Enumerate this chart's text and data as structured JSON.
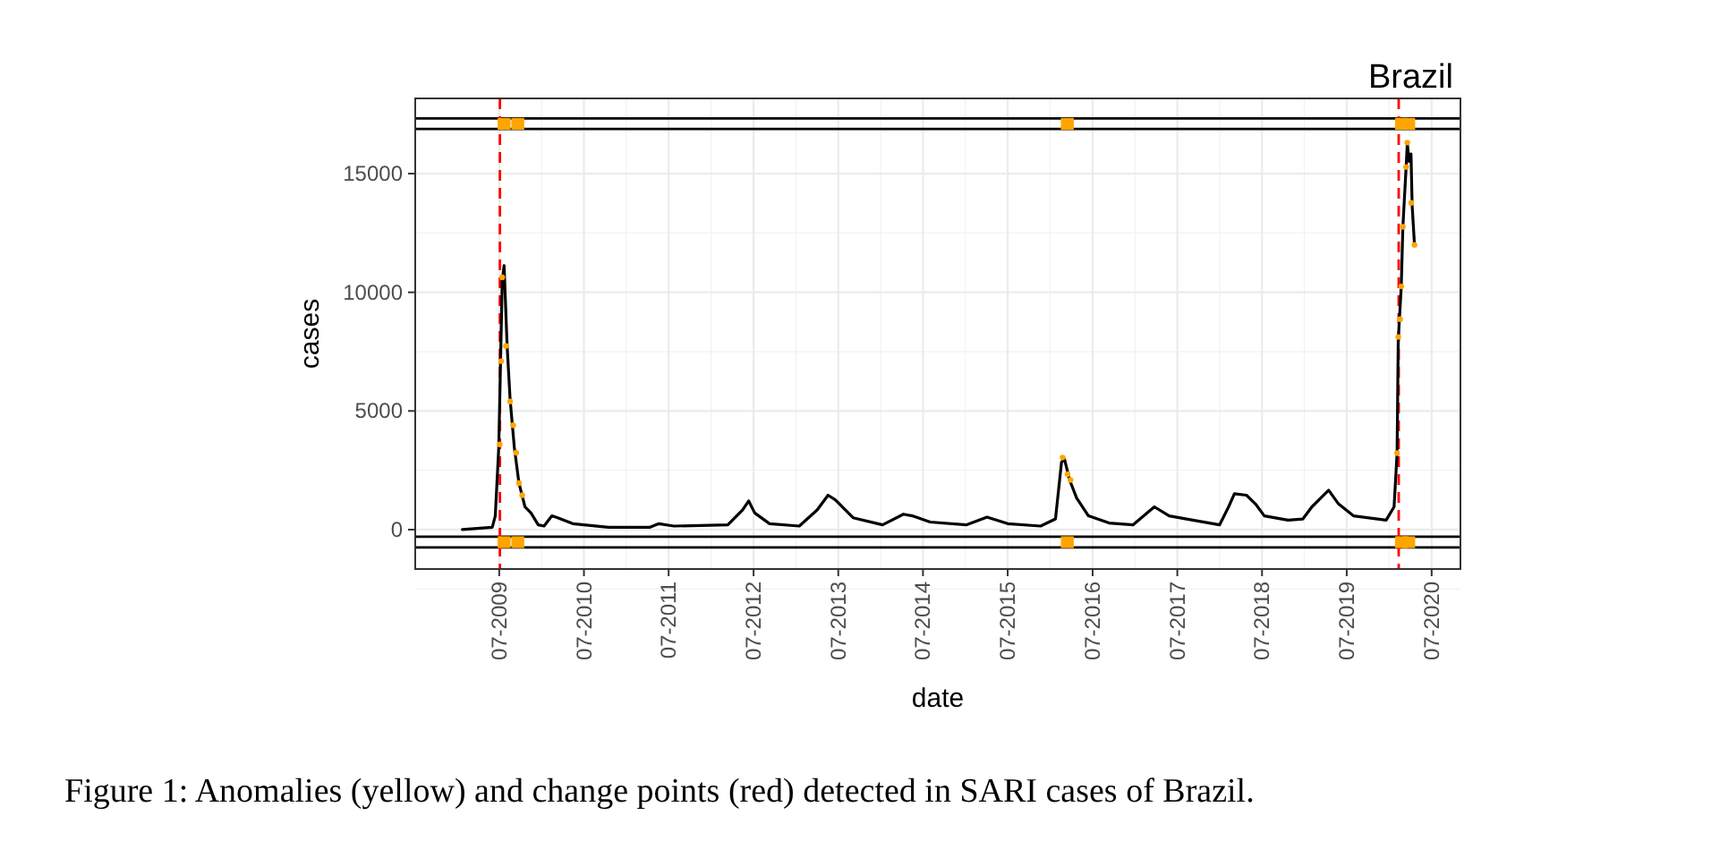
{
  "chart_data": {
    "type": "line",
    "title": "Brazil",
    "xlabel": "date",
    "ylabel": "cases",
    "annotations": [
      "Figure 1: Anomalies (yellow) and change points (red) detected in SARI cases of Brazil."
    ],
    "xlim": [
      "2008-07-04",
      "2020-11-02"
    ],
    "ylim": [
      -1660,
      18170
    ],
    "xticks": [
      {
        "value": "2009-07-01",
        "label": "07-2009"
      },
      {
        "value": "2010-07-01",
        "label": "07-2010"
      },
      {
        "value": "2011-07-01",
        "label": "07-2011"
      },
      {
        "value": "2012-07-01",
        "label": "07-2012"
      },
      {
        "value": "2013-07-01",
        "label": "07-2013"
      },
      {
        "value": "2014-07-01",
        "label": "07-2014"
      },
      {
        "value": "2015-07-01",
        "label": "07-2015"
      },
      {
        "value": "2016-07-01",
        "label": "07-2016"
      },
      {
        "value": "2017-07-01",
        "label": "07-2017"
      },
      {
        "value": "2018-07-01",
        "label": "07-2018"
      },
      {
        "value": "2019-07-01",
        "label": "07-2019"
      },
      {
        "value": "2020-07-01",
        "label": "07-2020"
      }
    ],
    "yticks": [
      0,
      5000,
      10000,
      15000
    ],
    "grid": true,
    "ref_lines": [
      {
        "axis": "y",
        "value": 17330,
        "color": "#000000",
        "line_style": "solid"
      },
      {
        "axis": "y",
        "value": 16880,
        "color": "#000000",
        "line_style": "solid"
      },
      {
        "axis": "y",
        "value": -300,
        "color": "#000000",
        "line_style": "solid"
      },
      {
        "axis": "y",
        "value": -750,
        "color": "#000000",
        "line_style": "solid"
      },
      {
        "axis": "x",
        "value": "2009-07-04",
        "color": "#ff0000",
        "line_style": "dashed"
      },
      {
        "axis": "x",
        "value": "2020-02-10",
        "color": "#ff0000",
        "line_style": "dashed"
      }
    ],
    "series": [
      {
        "color": "#000000",
        "marker": "none",
        "line_style": "solid",
        "x": [
          "2009-01-23",
          "2009-06-01",
          "2009-06-14",
          "2009-06-29",
          "2009-07-14",
          "2009-07-22",
          "2009-08-04",
          "2009-08-17",
          "2009-09-04",
          "2009-09-24",
          "2009-10-20",
          "2009-11-15",
          "2009-12-16",
          "2010-01-10",
          "2010-02-13",
          "2010-03-10",
          "2010-05-14",
          "2010-10-15",
          "2011-04-12",
          "2011-05-20",
          "2011-07-24",
          "2012-03-12",
          "2012-05-15",
          "2012-06-10",
          "2012-07-06",
          "2012-09-08",
          "2013-01-14",
          "2013-04-01",
          "2013-05-18",
          "2013-06-18",
          "2013-09-03",
          "2014-01-08",
          "2014-04-08",
          "2014-05-16",
          "2014-08-01",
          "2015-01-03",
          "2015-04-03",
          "2015-07-01",
          "2015-11-20",
          "2016-01-23",
          "2016-02-18",
          "2016-03-02",
          "2016-03-24",
          "2016-04-23",
          "2016-06-13",
          "2016-09-10",
          "2016-12-22",
          "2017-03-24",
          "2017-05-27",
          "2017-09-06",
          "2017-12-30",
          "2018-02-07",
          "2018-03-04",
          "2018-04-25",
          "2018-06-03",
          "2018-07-11",
          "2018-10-21",
          "2018-12-24",
          "2019-02-01",
          "2019-04-14",
          "2019-05-27",
          "2019-07-30",
          "2019-12-18",
          "2020-01-21",
          "2020-02-03",
          "2020-02-08",
          "2020-02-21",
          "2020-02-28",
          "2020-03-13",
          "2020-03-18",
          "2020-03-26",
          "2020-04-03",
          "2020-04-08",
          "2020-04-18"
        ],
        "values": [
          0,
          100,
          580,
          3470,
          10500,
          11130,
          7740,
          5480,
          3470,
          1960,
          960,
          700,
          200,
          150,
          580,
          500,
          250,
          100,
          100,
          250,
          150,
          200,
          830,
          1210,
          700,
          250,
          150,
          830,
          1450,
          1260,
          500,
          200,
          650,
          580,
          320,
          200,
          530,
          250,
          150,
          450,
          2840,
          2960,
          2090,
          1330,
          580,
          280,
          200,
          960,
          580,
          400,
          200,
          960,
          1510,
          1450,
          1080,
          580,
          400,
          450,
          960,
          1660,
          1080,
          580,
          400,
          960,
          3220,
          7990,
          10250,
          12760,
          15280,
          16280,
          15520,
          15830,
          13640,
          12000
        ]
      },
      {
        "type": "scatter",
        "color": "#ffa500",
        "marker": "circle",
        "x": [
          "2009-07-03",
          "2009-07-09",
          "2009-07-14",
          "2009-07-30",
          "2009-08-17",
          "2009-08-30",
          "2009-09-12",
          "2009-09-24",
          "2009-10-08",
          "2016-02-23",
          "2016-03-15",
          "2016-03-28",
          "2020-02-03",
          "2020-02-08",
          "2020-02-16",
          "2020-02-21",
          "2020-02-28",
          "2020-03-13",
          "2020-03-18",
          "2020-04-04",
          "2020-04-18"
        ],
        "values": [
          3590,
          7100,
          10630,
          7740,
          5400,
          4400,
          3240,
          1960,
          1450,
          3040,
          2340,
          2090,
          3220,
          8120,
          8870,
          10250,
          12760,
          15280,
          16310,
          13770,
          12000
        ]
      },
      {
        "type": "scatter",
        "color": "#ffa500",
        "marker": "square",
        "x": [
          "2009-07-22",
          "2009-09-19",
          "2016-03-14",
          "2020-02-22",
          "2020-03-24"
        ],
        "values": [
          17100,
          17100,
          17100,
          17100,
          17100
        ]
      },
      {
        "type": "scatter",
        "color": "#ffa500",
        "marker": "square",
        "x": [
          "2009-07-22",
          "2009-09-19",
          "2016-03-14",
          "2020-02-22",
          "2020-03-24"
        ],
        "values": [
          -530,
          -530,
          -530,
          -530,
          -530
        ]
      }
    ]
  }
}
